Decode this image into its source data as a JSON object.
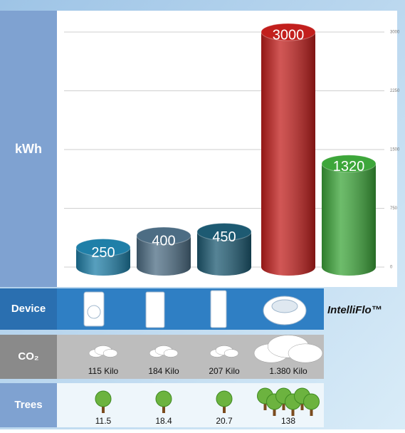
{
  "chart_data": {
    "type": "bar",
    "y_label": "kWh",
    "categories": [
      null,
      null,
      null,
      null,
      "IntelliFlo™"
    ],
    "values": [
      250,
      400,
      450,
      3000,
      1320
    ],
    "colors": [
      "#1f7fa8",
      "#4d6d84",
      "#1d5a72",
      "#c21f1d",
      "#3da63a"
    ],
    "ylim": [
      0,
      3000
    ],
    "yticks": [
      0,
      750,
      1500,
      2250,
      3000
    ],
    "grid": true
  },
  "table": {
    "rows": [
      {
        "label": "Device"
      },
      {
        "label": "CO₂",
        "values": [
          "115 Kilo",
          "184 Kilo",
          "207 Kilo",
          "1.380 Kilo"
        ]
      },
      {
        "label": "Trees",
        "values": [
          11.5,
          18.4,
          20.7,
          138
        ]
      }
    ]
  }
}
